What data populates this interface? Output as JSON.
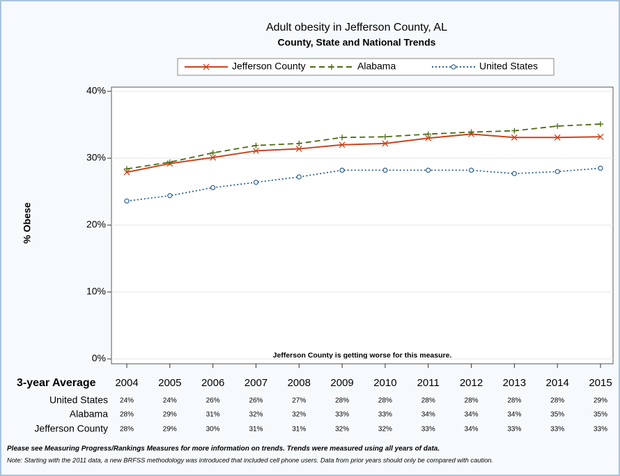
{
  "chart_data": {
    "type": "line",
    "title": "Adult obesity in Jefferson County, AL",
    "subtitle": "County, State and National Trends",
    "y_label": "% Obese",
    "annotation": "Jefferson County is getting worse for this measure.",
    "table_header": "3-year Average",
    "categories": [
      "2004",
      "2005",
      "2006",
      "2007",
      "2008",
      "2009",
      "2010",
      "2011",
      "2012",
      "2013",
      "2014",
      "2015"
    ],
    "ylim": [
      0,
      40
    ],
    "yticks": [
      {
        "value": 0,
        "label": "0%"
      },
      {
        "value": 10,
        "label": "10%"
      },
      {
        "value": 20,
        "label": "20%"
      },
      {
        "value": 30,
        "label": "30%"
      },
      {
        "value": 40,
        "label": "40%"
      }
    ],
    "grid": true,
    "series": [
      {
        "name": "Jefferson County",
        "color": "#c8441f",
        "dash": "solid",
        "marker": "x",
        "values": [
          27.9,
          29.2,
          30.1,
          31.1,
          31.4,
          32.0,
          32.2,
          33.0,
          33.6,
          33.1,
          33.1,
          33.2
        ],
        "value_labels": [
          "28%",
          "29%",
          "30%",
          "31%",
          "31%",
          "32%",
          "32%",
          "33%",
          "34%",
          "33%",
          "33%",
          "33%"
        ]
      },
      {
        "name": "Alabama",
        "color": "#4a6a10",
        "dash": "dashed",
        "marker": "plus",
        "values": [
          28.4,
          29.4,
          30.8,
          31.9,
          32.2,
          33.1,
          33.2,
          33.6,
          33.9,
          34.1,
          34.8,
          35.1
        ],
        "value_labels": [
          "28%",
          "29%",
          "31%",
          "32%",
          "32%",
          "33%",
          "33%",
          "34%",
          "34%",
          "34%",
          "35%",
          "35%"
        ]
      },
      {
        "name": "United States",
        "color": "#2a5f8f",
        "dash": "dotted",
        "marker": "circle",
        "values": [
          23.6,
          24.4,
          25.6,
          26.4,
          27.2,
          28.2,
          28.2,
          28.2,
          28.2,
          27.7,
          28.0,
          28.5
        ],
        "value_labels": [
          "24%",
          "24%",
          "26%",
          "26%",
          "27%",
          "28%",
          "28%",
          "28%",
          "28%",
          "28%",
          "28%",
          "29%"
        ]
      }
    ],
    "notes": [
      "Please see Measuring Progress/Rankings Measures for more information on trends. Trends were measured using all years of data.",
      "Note: Starting with the 2011 data, a new BRFSS methodology was introduced that included cell phone users.  Data from prior years should only be compared with caution."
    ]
  }
}
